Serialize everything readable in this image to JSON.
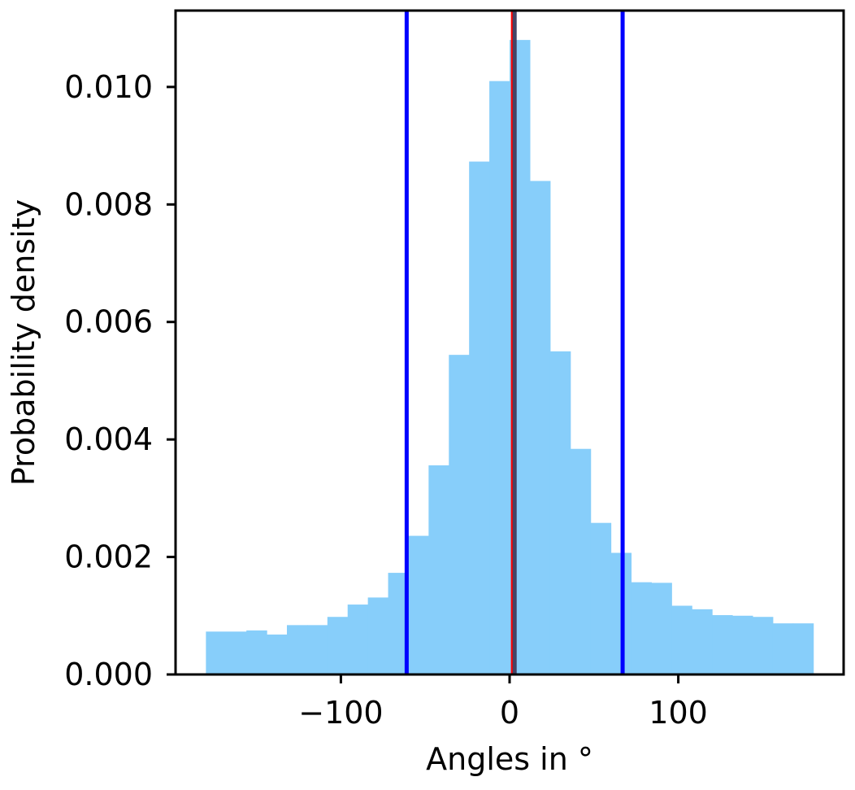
{
  "chart_data": {
    "type": "bar",
    "title": "",
    "xlabel": "Angles in °",
    "ylabel": "Probability density",
    "xlim": [
      -198,
      198
    ],
    "ylim": [
      0,
      0.0113
    ],
    "xticks": [
      -100,
      0,
      100
    ],
    "xtick_labels": [
      "−100",
      "0",
      "100"
    ],
    "yticks": [
      0,
      0.002,
      0.004,
      0.006,
      0.008,
      0.01
    ],
    "ytick_labels": [
      "0.000",
      "0.002",
      "0.004",
      "0.006",
      "0.008",
      "0.010"
    ],
    "grid": false,
    "legend": "none",
    "bin_edges": [
      -180,
      -156,
      -144,
      -132,
      -120,
      -108,
      -96,
      -84,
      -72,
      -60,
      -48,
      -36,
      -24,
      -12,
      0,
      12,
      24,
      36,
      48,
      60,
      72,
      84,
      96,
      108,
      120,
      132,
      144,
      156,
      168,
      180
    ],
    "values": [
      0.00073,
      0.00075,
      0.00068,
      0.00084,
      0.00084,
      0.00098,
      0.00119,
      0.00131,
      0.00173,
      0.00236,
      0.00356,
      0.00544,
      0.00873,
      0.0101,
      0.0108,
      0.0084,
      0.0055,
      0.00384,
      0.00258,
      0.00207,
      0.00157,
      0.00156,
      0.00117,
      0.00111,
      0.00101,
      0.001,
      0.00098,
      0.00087,
      0.00087
    ],
    "bar_color": "#87cefa",
    "vertical_lines": [
      {
        "x": -61,
        "color": "#0000ff"
      },
      {
        "x": 67,
        "color": "#0000ff"
      },
      {
        "x": 2,
        "color": "#ff0000"
      },
      {
        "x": 3,
        "color": "#444466"
      }
    ]
  }
}
